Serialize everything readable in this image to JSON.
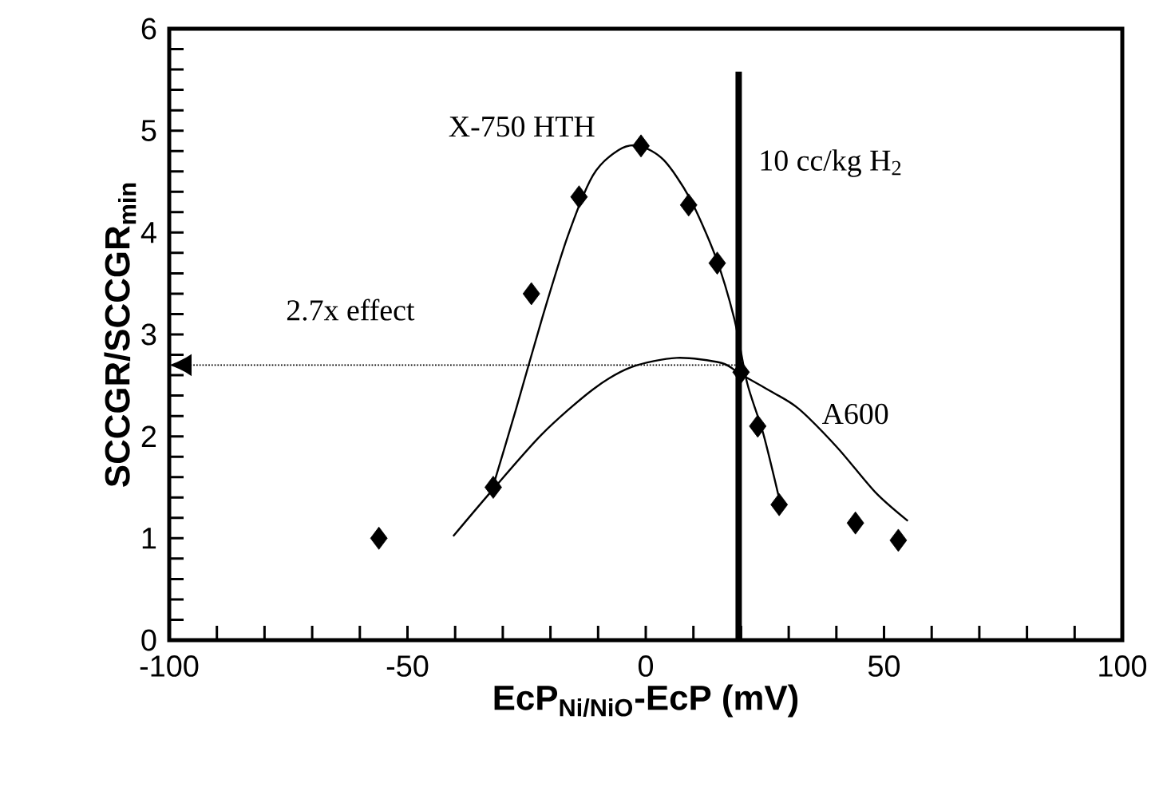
{
  "chart_data": {
    "type": "scatter",
    "xlabel": "EcP$_{Ni/NiO}$-EcP (mV)",
    "ylabel": "SCCGR/SCCGR$_{min}$",
    "xlim": [
      -100,
      100
    ],
    "xticks": [
      -100,
      -50,
      0,
      50,
      100
    ],
    "ylim": [
      0,
      6
    ],
    "yticks": [
      0,
      1,
      2,
      3,
      4,
      5,
      6
    ],
    "series": [
      {
        "color": "#000000",
        "marker": "diamond",
        "x": [
          -56,
          -32,
          -24,
          -14,
          -1,
          9,
          15,
          20,
          23.5,
          28,
          44,
          53
        ],
        "values": [
          1.0,
          1.5,
          3.4,
          4.35,
          4.85,
          4.27,
          3.7,
          2.63,
          2.1,
          1.33,
          1.15,
          0.98
        ]
      },
      {
        "type": "line",
        "color": "#000000",
        "x": [
          -32.3,
          -27.2,
          -21.8,
          -16.4,
          -11.1,
          -5.7,
          -1.3,
          3.8,
          9.2,
          14.6,
          18.6,
          21.3,
          24.7,
          28.3
        ],
        "values": [
          1.47,
          2.27,
          3.15,
          3.96,
          4.56,
          4.81,
          4.85,
          4.71,
          4.34,
          3.77,
          3.15,
          2.52,
          2.02,
          1.33
        ]
      },
      {
        "type": "line",
        "color": "#000000",
        "x": [
          -40.4,
          -32.6,
          -21.8,
          -11.1,
          -3,
          6.5,
          15.9,
          19.9,
          26.7,
          32.1,
          40.2,
          48.2,
          55
        ],
        "values": [
          1.02,
          1.45,
          2.02,
          2.46,
          2.68,
          2.77,
          2.72,
          2.61,
          2.43,
          2.27,
          1.89,
          1.45,
          1.17
        ]
      }
    ],
    "ref_lines": [
      {
        "axis": "x",
        "value": 19.5,
        "label": "10 cc/kg H$_{2}$",
        "color": "#000000"
      },
      {
        "axis": "y",
        "value": 2.7,
        "label": "2.7x effect",
        "color": "#000000",
        "line_style": "dotted"
      }
    ],
    "annotations": [
      "X-750 HTH",
      "A600"
    ]
  }
}
